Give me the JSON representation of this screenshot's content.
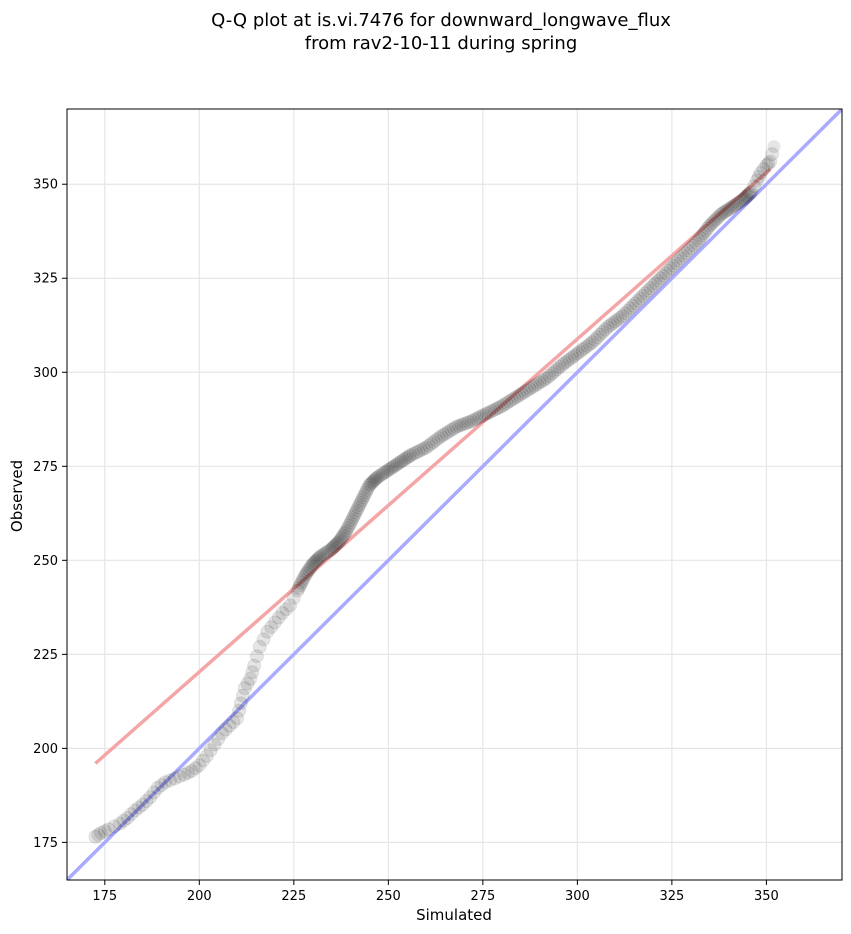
{
  "chart_data": {
    "type": "scatter",
    "title": "Q-Q plot at is.vi.7476 for downward_longwave_flux",
    "subtitle": "from rav2-10-11 during spring",
    "xlabel": "Simulated",
    "ylabel": "Observed",
    "xlim": [
      165,
      370
    ],
    "ylim": [
      165,
      370
    ],
    "xticks": [
      175,
      200,
      225,
      250,
      275,
      300,
      325,
      350
    ],
    "yticks": [
      175,
      200,
      225,
      250,
      275,
      300,
      325,
      350
    ],
    "grid": true,
    "reference_lines": [
      {
        "name": "1:1 line",
        "color": "#aaaaff",
        "points": [
          [
            165,
            165
          ],
          [
            370,
            370
          ]
        ]
      },
      {
        "name": "fit line",
        "color": "#f4a6a6",
        "points": [
          [
            172.5,
            196
          ],
          [
            351,
            354
          ]
        ]
      }
    ],
    "quantile_curve": {
      "color": "#000000",
      "points": [
        [
          172.5,
          176.5
        ],
        [
          174,
          177.5
        ],
        [
          176,
          178.5
        ],
        [
          179,
          180
        ],
        [
          181,
          181.5
        ],
        [
          183,
          183.5
        ],
        [
          185,
          185
        ],
        [
          187,
          187
        ],
        [
          189,
          189.5
        ],
        [
          191,
          191
        ],
        [
          193.5,
          192
        ],
        [
          196,
          193
        ],
        [
          198,
          194
        ],
        [
          200,
          195.5
        ],
        [
          202,
          198
        ],
        [
          204,
          201
        ],
        [
          206,
          204
        ],
        [
          208,
          206
        ],
        [
          210,
          208
        ],
        [
          211,
          212
        ],
        [
          212,
          216
        ],
        [
          213.5,
          218.5
        ],
        [
          214.5,
          222
        ],
        [
          216,
          227
        ],
        [
          218,
          231
        ],
        [
          220,
          233.5
        ],
        [
          222,
          236
        ],
        [
          224,
          238
        ],
        [
          226,
          242
        ],
        [
          228,
          246
        ],
        [
          230,
          249
        ],
        [
          232,
          251
        ],
        [
          235,
          253
        ],
        [
          237,
          255
        ],
        [
          239,
          258
        ],
        [
          241,
          262
        ],
        [
          243,
          266
        ],
        [
          245,
          270
        ],
        [
          247,
          272
        ],
        [
          250,
          274
        ],
        [
          253,
          276
        ],
        [
          256,
          278
        ],
        [
          260,
          280
        ],
        [
          264,
          283
        ],
        [
          268,
          285.5
        ],
        [
          272,
          287
        ],
        [
          276,
          289
        ],
        [
          280,
          291
        ],
        [
          284,
          293.5
        ],
        [
          288,
          296
        ],
        [
          292,
          298.5
        ],
        [
          296,
          302
        ],
        [
          300,
          305
        ],
        [
          304,
          308
        ],
        [
          308,
          312
        ],
        [
          312,
          315
        ],
        [
          316,
          319
        ],
        [
          320,
          323
        ],
        [
          324,
          327
        ],
        [
          328,
          331
        ],
        [
          332,
          335
        ],
        [
          335,
          339
        ],
        [
          338,
          342
        ],
        [
          341,
          344
        ],
        [
          344,
          346
        ],
        [
          346,
          348
        ],
        [
          347.5,
          351
        ],
        [
          348.5,
          353
        ],
        [
          350,
          355
        ],
        [
          351,
          356
        ],
        [
          352,
          360
        ]
      ]
    }
  }
}
